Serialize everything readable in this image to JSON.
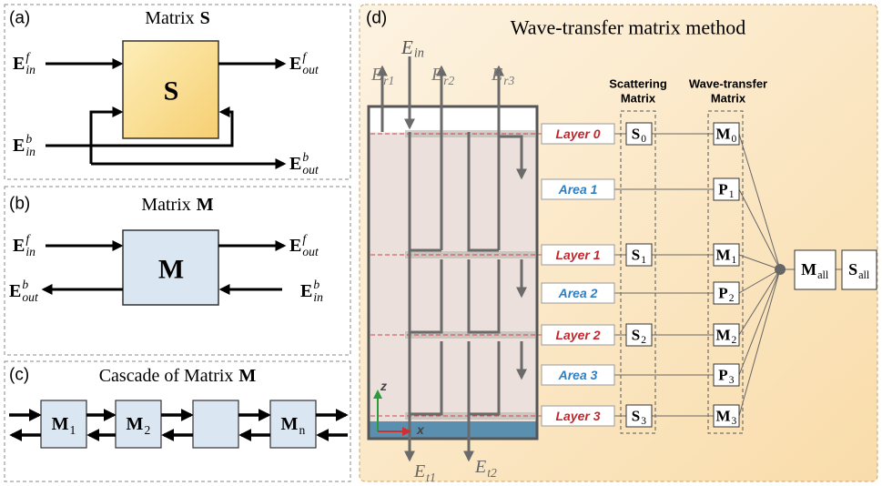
{
  "panel_a": {
    "label": "(a)",
    "title": "Matrix",
    "title_symbol": "S",
    "block": "S",
    "ports": [
      {
        "base": "E",
        "sub": "in",
        "sup": "f"
      },
      {
        "base": "E",
        "sub": "out",
        "sup": "f"
      },
      {
        "base": "E",
        "sub": "in",
        "sup": "b"
      },
      {
        "base": "E",
        "sub": "out",
        "sup": "b"
      }
    ]
  },
  "panel_b": {
    "label": "(b)",
    "title": "Matrix",
    "title_symbol": "M",
    "block": "M",
    "ports": [
      {
        "base": "E",
        "sub": "in",
        "sup": "f"
      },
      {
        "base": "E",
        "sub": "out",
        "sup": "f"
      },
      {
        "base": "E",
        "sub": "out",
        "sup": "b"
      },
      {
        "base": "E",
        "sub": "in",
        "sup": "b"
      }
    ]
  },
  "panel_c": {
    "label": "(c)",
    "title": "Cascade of Matrix",
    "title_symbol": "M",
    "blocks": [
      {
        "base": "M",
        "sub": "1"
      },
      {
        "base": "M",
        "sub": "2"
      },
      {
        "base": "M",
        "sub": "n"
      }
    ]
  },
  "panel_d": {
    "label": "(d)",
    "title": "Wave-transfer matrix method",
    "incident": {
      "base": "E",
      "sub": "in"
    },
    "reflected": [
      {
        "base": "E",
        "sub": "r1"
      },
      {
        "base": "E",
        "sub": "r2"
      },
      {
        "base": "E",
        "sub": "r3"
      }
    ],
    "transmitted": [
      {
        "base": "E",
        "sub": "t1"
      },
      {
        "base": "E",
        "sub": "t2"
      }
    ],
    "axes": [
      "z",
      "x"
    ],
    "scattering_header": [
      "Scattering",
      "Matrix"
    ],
    "transfer_header": [
      "Wave-transfer",
      "Matrix"
    ],
    "layers": [
      {
        "label": "Layer 0",
        "s": {
          "base": "S",
          "sub": "0"
        },
        "m": {
          "base": "M",
          "sub": "0"
        }
      },
      {
        "label": "Layer 1",
        "s": {
          "base": "S",
          "sub": "1"
        },
        "m": {
          "base": "M",
          "sub": "1"
        }
      },
      {
        "label": "Layer 2",
        "s": {
          "base": "S",
          "sub": "2"
        },
        "m": {
          "base": "M",
          "sub": "2"
        }
      },
      {
        "label": "Layer 3",
        "s": {
          "base": "S",
          "sub": "3"
        },
        "m": {
          "base": "M",
          "sub": "3"
        }
      }
    ],
    "areas": [
      {
        "label": "Area 1",
        "p": {
          "base": "P",
          "sub": "1"
        }
      },
      {
        "label": "Area 2",
        "p": {
          "base": "P",
          "sub": "2"
        }
      },
      {
        "label": "Area 3",
        "p": {
          "base": "P",
          "sub": "3"
        }
      }
    ],
    "total_m": {
      "base": "M",
      "sub": "all"
    },
    "total_s": {
      "base": "S",
      "sub": "all"
    }
  }
}
